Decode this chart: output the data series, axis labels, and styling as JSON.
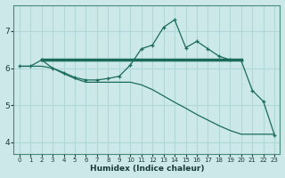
{
  "xlabel": "Humidex (Indice chaleur)",
  "bg_color": "#cce8e8",
  "grid_color": "#b0d8d8",
  "line_color": "#1a6b5a",
  "xlim": [
    -0.5,
    23.5
  ],
  "ylim": [
    3.7,
    7.7
  ],
  "xticks": [
    0,
    1,
    2,
    3,
    4,
    5,
    6,
    7,
    8,
    9,
    10,
    11,
    12,
    13,
    14,
    15,
    16,
    17,
    18,
    19,
    20,
    21,
    22,
    23
  ],
  "yticks": [
    4,
    5,
    6,
    7
  ],
  "line1_x": [
    2,
    20
  ],
  "line1_y": [
    6.22,
    6.22
  ],
  "line2_x": [
    0,
    1,
    2,
    3,
    4,
    5,
    6,
    7,
    8,
    9,
    10,
    11,
    12,
    13,
    14,
    15,
    16,
    17,
    18,
    19,
    20,
    21,
    22,
    23
  ],
  "line2_y": [
    6.05,
    6.05,
    6.22,
    6.0,
    5.88,
    5.75,
    5.68,
    5.68,
    5.72,
    5.78,
    6.08,
    6.52,
    6.62,
    7.1,
    7.3,
    6.55,
    6.72,
    6.52,
    6.32,
    6.22,
    6.2,
    5.4,
    5.1,
    4.2
  ],
  "line3_x": [
    0,
    1,
    2,
    3,
    4,
    5,
    6,
    7,
    8,
    9,
    10,
    11,
    12,
    13,
    14,
    15,
    16,
    17,
    18,
    19,
    20,
    21,
    22,
    23
  ],
  "line3_y": [
    6.05,
    6.05,
    6.05,
    6.0,
    5.85,
    5.72,
    5.62,
    5.62,
    5.62,
    5.62,
    5.62,
    5.55,
    5.42,
    5.25,
    5.08,
    4.92,
    4.75,
    4.6,
    4.45,
    4.32,
    4.22,
    4.22,
    4.22,
    4.22
  ]
}
